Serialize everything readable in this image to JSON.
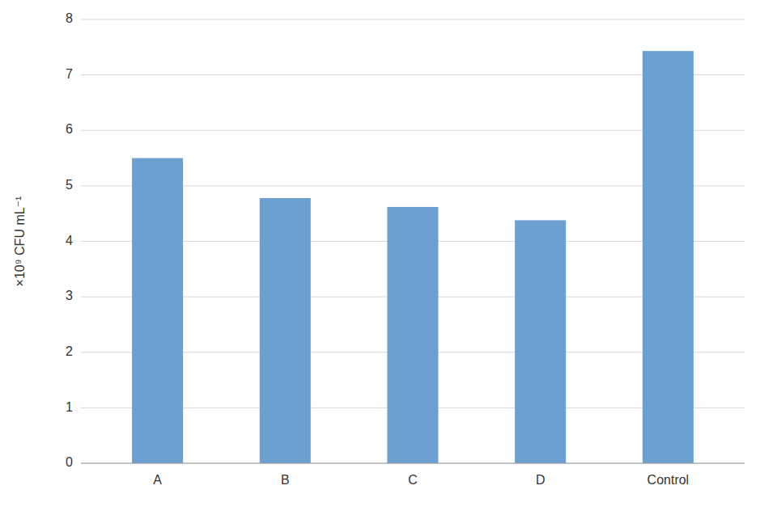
{
  "chart_data": {
    "type": "bar",
    "categories": [
      "A",
      "B",
      "C",
      "D",
      "Control"
    ],
    "values": [
      5.5,
      4.78,
      4.62,
      4.38,
      7.43
    ],
    "color": "#6CA0D0",
    "ylabel": "×10⁹ CFU mL⁻¹",
    "ylim": [
      0,
      8
    ],
    "yticks": [
      0,
      1,
      2,
      3,
      4,
      5,
      6,
      7,
      8
    ],
    "grid": true
  }
}
